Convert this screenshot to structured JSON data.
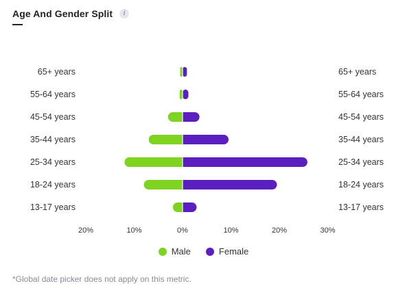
{
  "header": {
    "title": "Age And Gender Split",
    "info_icon": "info-icon",
    "info_label": "i"
  },
  "chart_data": {
    "type": "bar",
    "orientation": "horizontal-diverging",
    "categories": [
      "65+ years",
      "55-64 years",
      "45-54 years",
      "35-44 years",
      "25-34 years",
      "18-24 years",
      "13-17 years"
    ],
    "series": [
      {
        "name": "Male",
        "color": "#7ed321",
        "values": [
          0.5,
          0.6,
          3.0,
          7.0,
          12.0,
          8.0,
          2.0
        ]
      },
      {
        "name": "Female",
        "color": "#5b1fbf",
        "values": [
          0.9,
          1.2,
          3.5,
          9.5,
          25.8,
          19.5,
          2.9
        ]
      }
    ],
    "xlim": [
      -20,
      30
    ],
    "xticks": [
      -20,
      -10,
      0,
      10,
      20,
      30
    ],
    "xtick_labels": [
      "20%",
      "10%",
      "0%",
      "10%",
      "20%",
      "30%"
    ],
    "grid": false,
    "legend_position": "bottom-center"
  },
  "footnote": "*Global date picker does not apply on this metric."
}
